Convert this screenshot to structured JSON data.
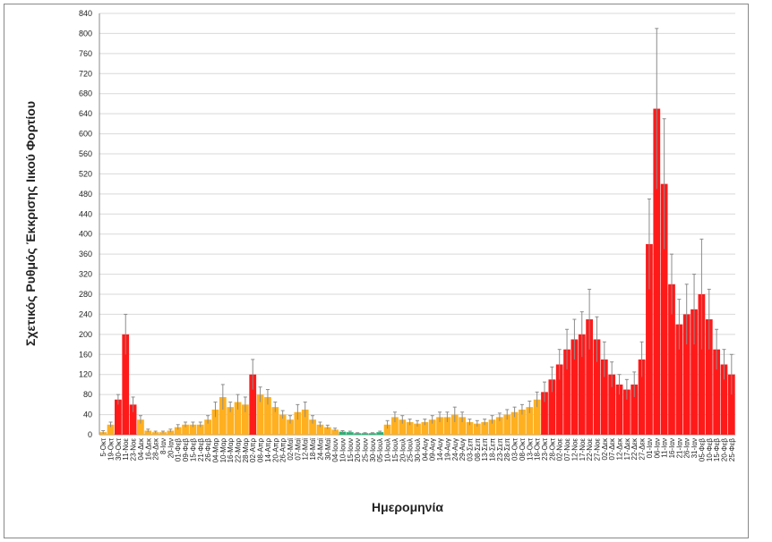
{
  "chart_data": {
    "type": "bar",
    "title": "",
    "xlabel": "Ημερομηνία",
    "ylabel": "Σχετικός Ρυθμός Έκκρισης Ιικού Φορτίου",
    "ylim": [
      0,
      840
    ],
    "yticks": [
      0,
      40,
      80,
      120,
      160,
      200,
      240,
      280,
      320,
      360,
      400,
      440,
      480,
      520,
      560,
      600,
      640,
      680,
      720,
      760,
      800,
      840
    ],
    "grid": true,
    "colors": {
      "r": "#ff1a1a",
      "o": "#ffb020",
      "g": "#22b573",
      "error": "#8c8c8c"
    },
    "categories": [
      "5-Οκτ",
      "19-Οκτ",
      "30-Οκτ",
      "11-Νοε",
      "23-Νοε",
      "04-Δεκ",
      "16-Δεκ",
      "28-Δεκ",
      "8-Ιαν",
      "20-Ιαν",
      "01-Φεβ",
      "09-Φεβ",
      "15-Φεβ",
      "21-Φεβ",
      "26-Φεβ",
      "04-Μαρ",
      "10-Μαρ",
      "16-Μαρ",
      "22-Μαρ",
      "28-Μαρ",
      "02-Απρ",
      "08-Απρ",
      "14-Απρ",
      "20-Απρ",
      "26-Απρ",
      "02-Μαϊ",
      "07-Μαϊ",
      "12-Μαϊ",
      "18-Μαϊ",
      "24-Μαϊ",
      "30-Μαϊ",
      "04-Ιουν",
      "10-Ιουν",
      "15-Ιουν",
      "20-Ιουν",
      "25-Ιουν",
      "30-Ιουν",
      "05-Ιουλ",
      "10-Ιουλ",
      "15-Ιουλ",
      "20-Ιουλ",
      "25-Ιουλ",
      "30-Ιουλ",
      "04-Αυγ",
      "09-Αυγ",
      "14-Αυγ",
      "19-Αυγ",
      "24-Αυγ",
      "29-Αυγ",
      "03-Σεπ",
      "08-Σεπ",
      "13-Σεπ",
      "18-Σεπ",
      "23-Σεπ",
      "28-Σεπ",
      "03-Οκτ",
      "08-Οκτ",
      "13-Οκτ",
      "18-Οκτ",
      "23-Οκτ",
      "28-Οκτ",
      "02-Νοε",
      "07-Νοε",
      "12-Νοε",
      "17-Νοε",
      "22-Νοε",
      "27-Νοε",
      "02-Δεκ",
      "07-Δεκ",
      "12-Δεκ",
      "17-Δεκ",
      "22-Δεκ",
      "27-Δεκ",
      "01-Ιαν",
      "06-Ιαν",
      "11-Ιαν",
      "16-Ιαν",
      "21-Ιαν",
      "26-Ιαν",
      "31-Ιαν",
      "05-Φεβ",
      "10-Φεβ",
      "15-Φεβ",
      "20-Φεβ",
      "25-Φεβ"
    ],
    "values": [
      5,
      20,
      70,
      200,
      60,
      30,
      8,
      5,
      5,
      8,
      15,
      20,
      20,
      20,
      30,
      50,
      75,
      55,
      65,
      60,
      120,
      80,
      75,
      55,
      40,
      30,
      45,
      50,
      30,
      20,
      15,
      10,
      6,
      5,
      3,
      3,
      3,
      5,
      20,
      35,
      30,
      25,
      22,
      25,
      30,
      35,
      35,
      40,
      35,
      25,
      22,
      25,
      30,
      35,
      40,
      45,
      50,
      55,
      70,
      85,
      110,
      140,
      170,
      190,
      200,
      230,
      190,
      150,
      120,
      100,
      90,
      100,
      150,
      380,
      650,
      500,
      300,
      220,
      240,
      250,
      280,
      230,
      170,
      140,
      120
    ],
    "errors": [
      3,
      5,
      10,
      40,
      15,
      8,
      3,
      2,
      2,
      3,
      5,
      5,
      5,
      5,
      8,
      15,
      25,
      10,
      15,
      15,
      30,
      15,
      15,
      10,
      8,
      8,
      15,
      15,
      8,
      5,
      4,
      3,
      2,
      2,
      1,
      1,
      1,
      2,
      8,
      10,
      8,
      6,
      6,
      6,
      8,
      10,
      10,
      15,
      10,
      6,
      6,
      6,
      8,
      8,
      10,
      10,
      10,
      12,
      15,
      20,
      25,
      30,
      40,
      40,
      45,
      60,
      45,
      35,
      25,
      20,
      20,
      25,
      35,
      90,
      160,
      130,
      60,
      50,
      60,
      70,
      110,
      60,
      40,
      30,
      40
    ],
    "bar_colors": [
      "o",
      "o",
      "r",
      "r",
      "r",
      "o",
      "o",
      "o",
      "o",
      "o",
      "o",
      "o",
      "o",
      "o",
      "o",
      "o",
      "o",
      "o",
      "o",
      "o",
      "r",
      "o",
      "o",
      "o",
      "o",
      "o",
      "o",
      "o",
      "o",
      "o",
      "o",
      "o",
      "g",
      "g",
      "g",
      "g",
      "g",
      "g",
      "o",
      "o",
      "o",
      "o",
      "o",
      "o",
      "o",
      "o",
      "o",
      "o",
      "o",
      "o",
      "o",
      "o",
      "o",
      "o",
      "o",
      "o",
      "o",
      "o",
      "o",
      "r",
      "r",
      "r",
      "r",
      "r",
      "r",
      "r",
      "r",
      "r",
      "r",
      "r",
      "r",
      "r",
      "r",
      "r",
      "r",
      "r",
      "r",
      "r",
      "r",
      "r",
      "r",
      "r",
      "r",
      "r",
      "r"
    ]
  }
}
